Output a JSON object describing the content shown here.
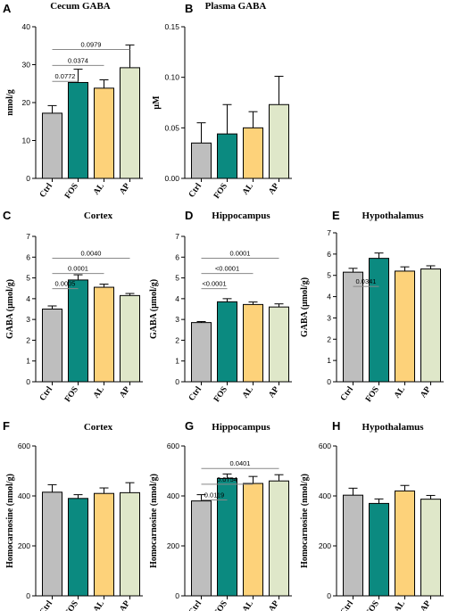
{
  "colors": {
    "Ctrl": "#bebebe",
    "FOS": "#0b8a80",
    "AL": "#fdd27a",
    "AP": "#dfe7c9",
    "axis": "#000000",
    "bracket": "#888888"
  },
  "chart_data": [
    {
      "id": "A",
      "letter": "A",
      "type": "bar",
      "title": "Cecum GABA",
      "ylabel": "nmol/g",
      "categories": [
        "Ctrl",
        "FOS",
        "AL",
        "AP"
      ],
      "values": [
        17.2,
        25.3,
        23.8,
        29.2
      ],
      "errors": [
        2.0,
        3.5,
        2.2,
        6.0
      ],
      "ylim": [
        0,
        40
      ],
      "yticks": [
        "0",
        "10",
        "20",
        "30",
        "40"
      ],
      "comparisons": [
        {
          "from": 0,
          "to": 1,
          "label": "0.0772"
        },
        {
          "from": 0,
          "to": 2,
          "label": "0.0374"
        },
        {
          "from": 0,
          "to": 3,
          "label": "0.0979"
        }
      ]
    },
    {
      "id": "B",
      "letter": "B",
      "type": "bar",
      "title": "Plasma GABA",
      "ylabel": "μM",
      "categories": [
        "Ctrl",
        "FOS",
        "AL",
        "AP"
      ],
      "values": [
        0.035,
        0.044,
        0.05,
        0.073
      ],
      "errors": [
        0.02,
        0.029,
        0.016,
        0.028
      ],
      "ylim": [
        0,
        0.15
      ],
      "yticks": [
        "0.00",
        "0.05",
        "0.10",
        "0.15"
      ],
      "comparisons": []
    },
    {
      "id": "C",
      "letter": "C",
      "type": "bar",
      "title": "Cortex",
      "ylabel": "GABA (μmol/g)",
      "categories": [
        "Ctrl",
        "FOS",
        "AL",
        "AP"
      ],
      "values": [
        3.5,
        4.9,
        4.55,
        4.15
      ],
      "errors": [
        0.15,
        0.25,
        0.15,
        0.1
      ],
      "ylim": [
        0,
        7
      ],
      "yticks": [
        "0",
        "1",
        "2",
        "3",
        "4",
        "5",
        "6",
        "7"
      ],
      "comparisons": [
        {
          "from": 0,
          "to": 1,
          "label": "0.0005"
        },
        {
          "from": 0,
          "to": 2,
          "label": "0.0001"
        },
        {
          "from": 0,
          "to": 3,
          "label": "0.0040"
        }
      ]
    },
    {
      "id": "D",
      "letter": "D",
      "type": "bar",
      "title": "Hippocampus",
      "ylabel": "GABA (μmol/g)",
      "categories": [
        "Ctrl",
        "FOS",
        "AL",
        "AP"
      ],
      "values": [
        2.85,
        3.85,
        3.72,
        3.6
      ],
      "errors": [
        0.05,
        0.15,
        0.12,
        0.15
      ],
      "ylim": [
        0,
        7
      ],
      "yticks": [
        "0",
        "1",
        "2",
        "3",
        "4",
        "5",
        "6",
        "7"
      ],
      "comparisons": [
        {
          "from": 0,
          "to": 1,
          "label": "<0.0001"
        },
        {
          "from": 0,
          "to": 2,
          "label": "<0.0001"
        },
        {
          "from": 0,
          "to": 3,
          "label": "0.0001"
        }
      ]
    },
    {
      "id": "E",
      "letter": "E",
      "type": "bar",
      "title": "Hypothalamus",
      "ylabel": "GABA (μmol/g)",
      "categories": [
        "Ctrl",
        "FOS",
        "AL",
        "AP"
      ],
      "values": [
        5.15,
        5.8,
        5.2,
        5.3
      ],
      "errors": [
        0.18,
        0.25,
        0.2,
        0.15
      ],
      "ylim": [
        0,
        7
      ],
      "yticks": [
        "0",
        "1",
        "2",
        "3",
        "4",
        "5",
        "6",
        "7"
      ],
      "comparisons": [
        {
          "from": 0,
          "to": 1,
          "label": "0.0341"
        }
      ]
    },
    {
      "id": "F",
      "letter": "F",
      "type": "bar",
      "title": "Cortex",
      "ylabel": "Homocarnosine (nmol/g)",
      "categories": [
        "Ctrl",
        "FOS",
        "AL",
        "AP"
      ],
      "values": [
        415,
        390,
        410,
        413
      ],
      "errors": [
        30,
        15,
        22,
        40
      ],
      "ylim": [
        0,
        600
      ],
      "yticks": [
        "0",
        "200",
        "400",
        "600"
      ],
      "comparisons": []
    },
    {
      "id": "G",
      "letter": "G",
      "type": "bar",
      "title": "Hippocampus",
      "ylabel": "Homocarnosine (nmol/g)",
      "categories": [
        "Ctrl",
        "FOS",
        "AL",
        "AP"
      ],
      "values": [
        380,
        470,
        450,
        460
      ],
      "errors": [
        25,
        18,
        28,
        25
      ],
      "ylim": [
        0,
        600
      ],
      "yticks": [
        "0",
        "200",
        "400",
        "600"
      ],
      "comparisons": [
        {
          "from": 0,
          "to": 1,
          "label": "0.0119"
        },
        {
          "from": 0,
          "to": 2,
          "label": "0.0754"
        },
        {
          "from": 0,
          "to": 3,
          "label": "0.0401"
        }
      ]
    },
    {
      "id": "H",
      "letter": "H",
      "type": "bar",
      "title": "Hypothalamus",
      "ylabel": "Homocarnosine (nmol/g)",
      "categories": [
        "Ctrl",
        "FOS",
        "AL",
        "AP"
      ],
      "values": [
        403,
        370,
        420,
        387
      ],
      "errors": [
        28,
        18,
        22,
        15
      ],
      "ylim": [
        0,
        600
      ],
      "yticks": [
        "0",
        "200",
        "400",
        "600"
      ],
      "comparisons": []
    }
  ]
}
